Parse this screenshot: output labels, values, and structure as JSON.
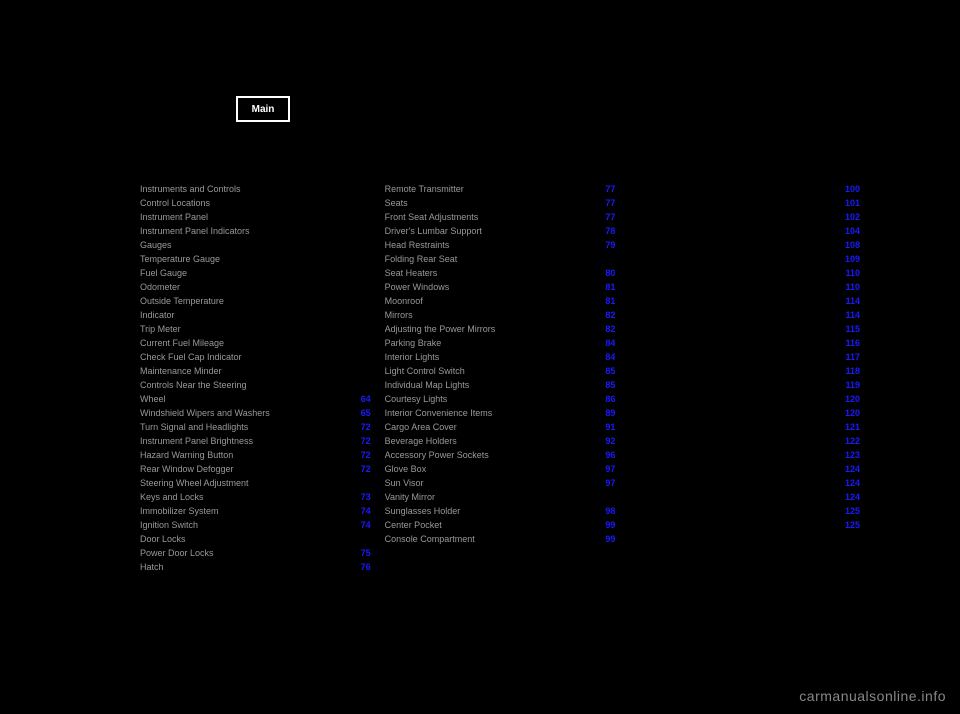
{
  "tab_label": "Main",
  "watermark": "carmanualsonline.info",
  "columns": [
    [
      {
        "label": "Instruments and Controls"
      },
      {
        "label": "Control Locations"
      },
      {
        "label": "Instrument Panel"
      },
      {
        "label": "Instrument Panel Indicators"
      },
      {
        "label": "Gauges"
      },
      {
        "label": "Temperature Gauge"
      },
      {
        "label": "Fuel Gauge"
      },
      {
        "label": "Odometer"
      },
      {
        "label": "Outside Temperature"
      },
      {
        "label": "Indicator"
      },
      {
        "label": "Trip Meter"
      },
      {
        "label": "Current Fuel Mileage"
      },
      {
        "label": "Check Fuel Cap Indicator"
      },
      {
        "label": "Maintenance Minder"
      },
      {
        "label": "Controls Near the Steering"
      },
      {
        "label": "Wheel",
        "page": "64"
      },
      {
        "label": "Windshield Wipers and Washers",
        "page": "65"
      },
      {
        "label": "Turn Signal and Headlights",
        "page": "72"
      },
      {
        "label": "Instrument Panel Brightness",
        "page": "72"
      },
      {
        "label": "Hazard Warning Button",
        "page": "72"
      },
      {
        "label": "Rear Window Defogger",
        "page": "72"
      },
      {
        "label": "Steering Wheel Adjustment"
      },
      {
        "label": "Keys and Locks",
        "page": "73"
      },
      {
        "label": "Immobilizer System",
        "page": "74"
      },
      {
        "label": "Ignition Switch",
        "page": "74"
      },
      {
        "label": "Door Locks"
      },
      {
        "label": "Power Door Locks",
        "page": "75"
      },
      {
        "label": "Hatch",
        "page": "76"
      }
    ],
    [
      {
        "label": "Remote Transmitter",
        "page": "77"
      },
      {
        "label": "Seats",
        "page": "77"
      },
      {
        "label": "Front Seat Adjustments",
        "page": "77"
      },
      {
        "label": "Driver's Lumbar Support",
        "page": "78"
      },
      {
        "label": "Head Restraints",
        "page": "79"
      },
      {
        "label": "Folding Rear Seat"
      },
      {
        "label": "Seat Heaters",
        "page": "80"
      },
      {
        "label": "Power Windows",
        "page": "81"
      },
      {
        "label": "Moonroof",
        "page": "81"
      },
      {
        "label": "Mirrors",
        "page": "82"
      },
      {
        "label": "Adjusting the Power Mirrors",
        "page": "82"
      },
      {
        "label": "Parking Brake",
        "page": "84"
      },
      {
        "label": "Interior Lights",
        "page": "84"
      },
      {
        "label": "Light Control Switch",
        "page": "85"
      },
      {
        "label": "Individual Map Lights",
        "page": "85"
      },
      {
        "label": "Courtesy Lights",
        "page": "86"
      },
      {
        "label": "Interior Convenience Items",
        "page": "89"
      },
      {
        "label": "Cargo Area Cover",
        "page": "91"
      },
      {
        "label": "Beverage Holders",
        "page": "92"
      },
      {
        "label": "Accessory Power Sockets",
        "page": "96"
      },
      {
        "label": "Glove Box",
        "page": "97"
      },
      {
        "label": "Sun Visor",
        "page": "97"
      },
      {
        "label": "Vanity Mirror"
      },
      {
        "label": "Sunglasses Holder",
        "page": "98"
      },
      {
        "label": "Center Pocket",
        "page": "99"
      },
      {
        "label": "Console Compartment",
        "page": "99"
      }
    ],
    [
      {
        "label": "",
        "page": "100"
      },
      {
        "label": "",
        "page": "101"
      },
      {
        "label": "",
        "page": "102"
      },
      {
        "label": "",
        "page": "104"
      },
      {
        "label": "",
        "page": "108"
      },
      {
        "label": "",
        "page": "109"
      },
      {
        "label": "",
        "page": "110"
      },
      {
        "label": "",
        "page": "110"
      },
      {
        "label": "",
        "page": "114"
      },
      {
        "label": "",
        "page": "114"
      },
      {
        "label": "",
        "page": "115"
      },
      {
        "label": "",
        "page": "116"
      },
      {
        "label": "",
        "page": "117"
      },
      {
        "label": "",
        "page": "118"
      },
      {
        "label": "",
        "page": "119"
      },
      {
        "label": "",
        "page": "120"
      },
      {
        "label": "",
        "page": "120"
      },
      {
        "label": "",
        "page": "121"
      },
      {
        "label": "",
        "page": "122"
      },
      {
        "label": "",
        "page": "123"
      },
      {
        "label": "",
        "page": "124"
      },
      {
        "label": "",
        "page": "124"
      },
      {
        "label": "",
        "page": "124"
      },
      {
        "label": "",
        "page": "125"
      },
      {
        "label": "",
        "page": "125"
      }
    ]
  ]
}
